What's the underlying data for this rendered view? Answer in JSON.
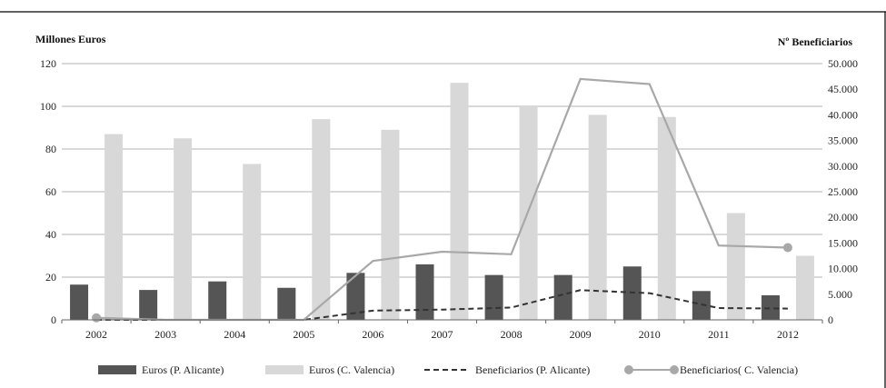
{
  "chart_data": {
    "type": "bar",
    "categories": [
      "2002",
      "2003",
      "2004",
      "2005",
      "2006",
      "2007",
      "2008",
      "2009",
      "2010",
      "2011",
      "2012"
    ],
    "ylabel_left": "Millones Euros",
    "ylabel_right": "Nº Beneficiarios",
    "ylim_left": [
      0,
      120
    ],
    "ylim_right": [
      0,
      50000
    ],
    "yticks_left": [
      "0",
      "20",
      "40",
      "60",
      "80",
      "100",
      "120"
    ],
    "yticks_right": [
      "0",
      "5.000",
      "10.000",
      "15.000",
      "20.000",
      "25.000",
      "30.000",
      "35.000",
      "40.000",
      "45.000",
      "50.000"
    ],
    "grid": true,
    "legend_position": "bottom",
    "series": [
      {
        "name": "Euros (P. Alicante)",
        "type": "bar",
        "axis": "left",
        "color": "#555555",
        "values": [
          16.5,
          14,
          18,
          15,
          22,
          26,
          21,
          21,
          25,
          13.5,
          11.5
        ]
      },
      {
        "name": "Euros (C. Valencia)",
        "type": "bar",
        "axis": "left",
        "color": "#d8d8d8",
        "values": [
          87,
          85,
          73,
          94,
          89,
          111,
          100,
          96,
          95,
          50,
          30
        ]
      },
      {
        "name": "Beneficiarios (P. Alicante)",
        "type": "line",
        "style": "dashed",
        "axis": "right",
        "color": "#333333",
        "values": [
          0,
          0,
          0,
          0,
          1800,
          2000,
          2400,
          5800,
          5200,
          2300,
          2200
        ]
      },
      {
        "name": "Beneficiarios( C. Valencia)",
        "type": "line",
        "style": "solid",
        "axis": "right",
        "color": "#a8a8a8",
        "values": [
          400,
          0,
          0,
          0,
          11500,
          13300,
          12800,
          47000,
          46000,
          14500,
          14100
        ]
      }
    ]
  }
}
